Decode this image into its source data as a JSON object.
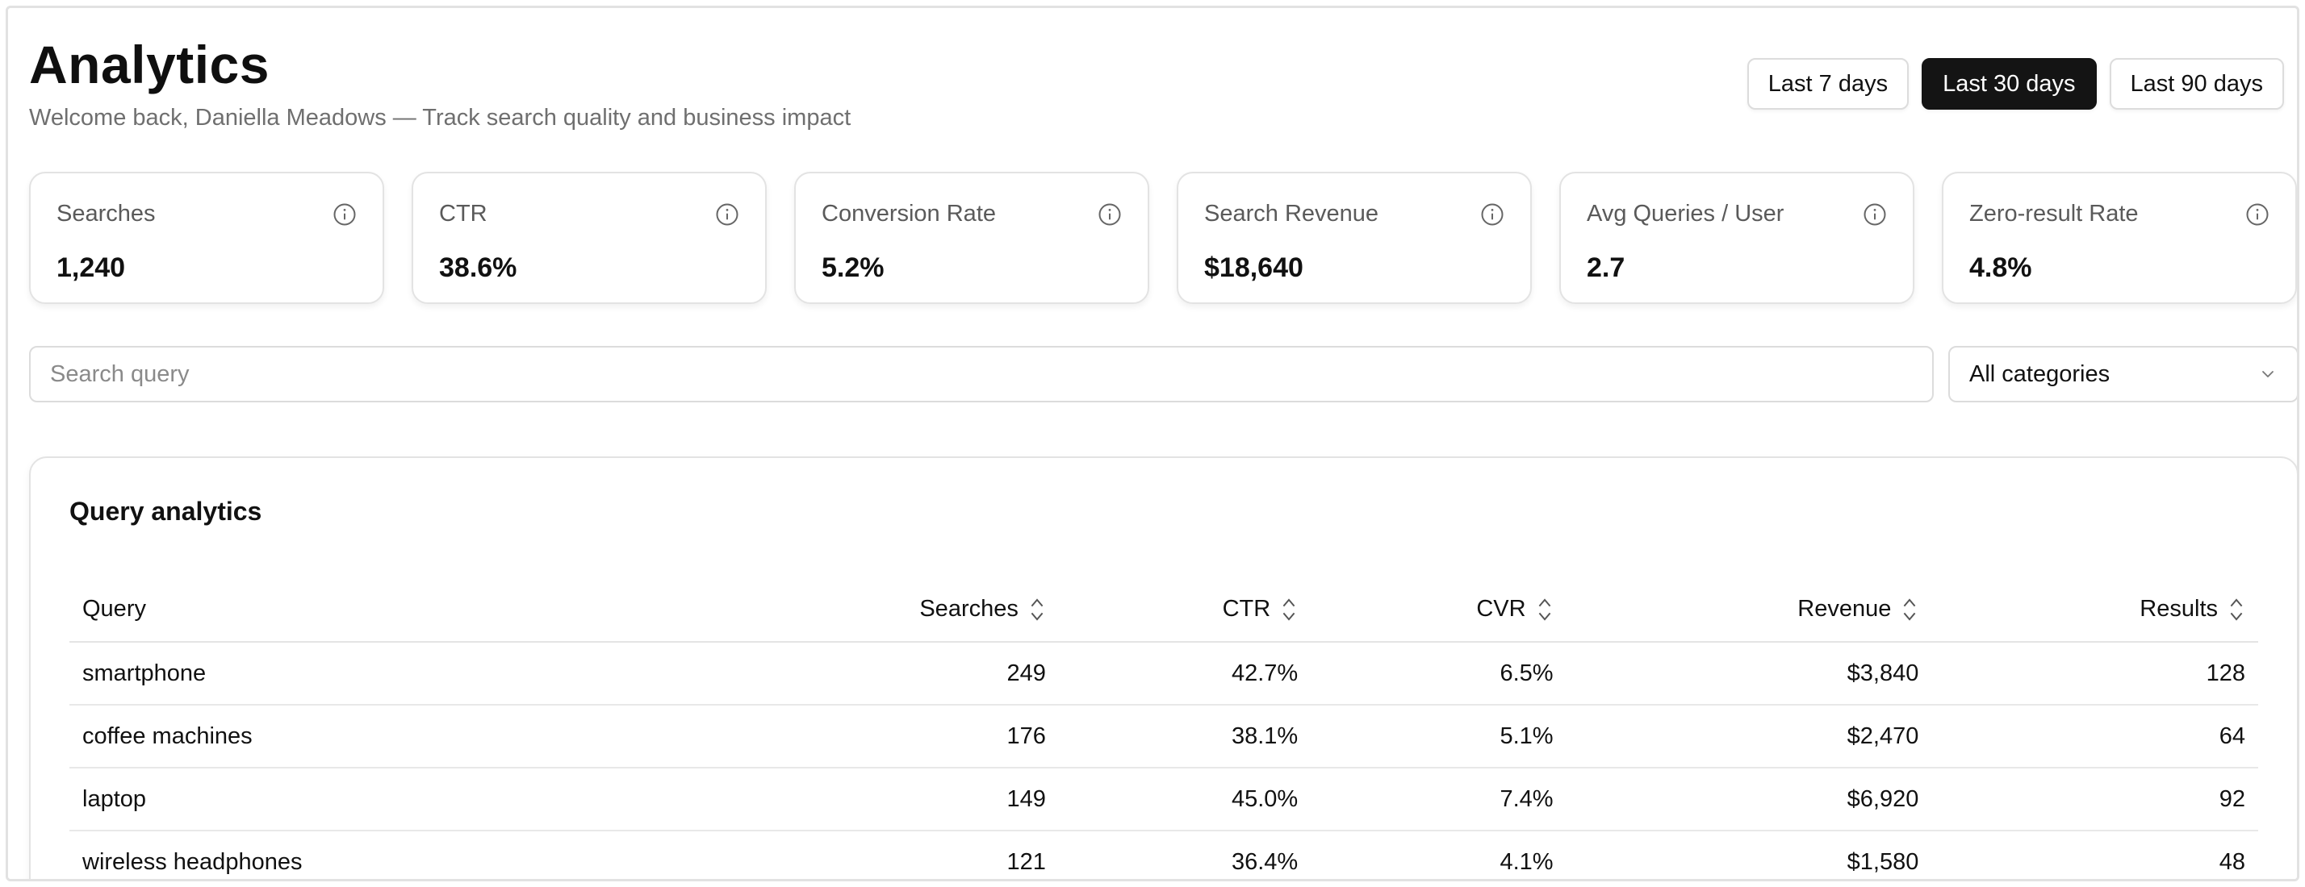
{
  "header": {
    "title": "Analytics",
    "subtitle": "Welcome back, Daniella Meadows — Track search quality and business impact"
  },
  "date_ranges": [
    {
      "label": "Last 7 days",
      "active": false
    },
    {
      "label": "Last 30 days",
      "active": true
    },
    {
      "label": "Last 90 days",
      "active": false
    }
  ],
  "kpis": [
    {
      "label": "Searches",
      "value": "1,240"
    },
    {
      "label": "CTR",
      "value": "38.6%"
    },
    {
      "label": "Conversion Rate",
      "value": "5.2%"
    },
    {
      "label": "Search Revenue",
      "value": "$18,640"
    },
    {
      "label": "Avg Queries / User",
      "value": "2.7"
    },
    {
      "label": "Zero-result Rate",
      "value": "4.8%"
    }
  ],
  "filters": {
    "search_placeholder": "Search query",
    "search_value": "",
    "category_selected": "All categories"
  },
  "table": {
    "title": "Query analytics",
    "columns": [
      "Query",
      "Searches",
      "CTR",
      "CVR",
      "Revenue",
      "Results"
    ],
    "rows": [
      [
        "smartphone",
        "249",
        "42.7%",
        "6.5%",
        "$3,840",
        "128"
      ],
      [
        "coffee machines",
        "176",
        "38.1%",
        "5.1%",
        "$2,470",
        "64"
      ],
      [
        "laptop",
        "149",
        "45.0%",
        "7.4%",
        "$6,920",
        "92"
      ],
      [
        "wireless headphones",
        "121",
        "36.4%",
        "4.1%",
        "$1,580",
        "48"
      ]
    ]
  },
  "icons": {
    "info": "info-icon",
    "chevron": "chevron-down-icon",
    "sort": "sort-icon"
  },
  "colors": {
    "active_bg": "#141414",
    "border": "#e3e3e3",
    "muted_text": "#6f6f6f"
  }
}
